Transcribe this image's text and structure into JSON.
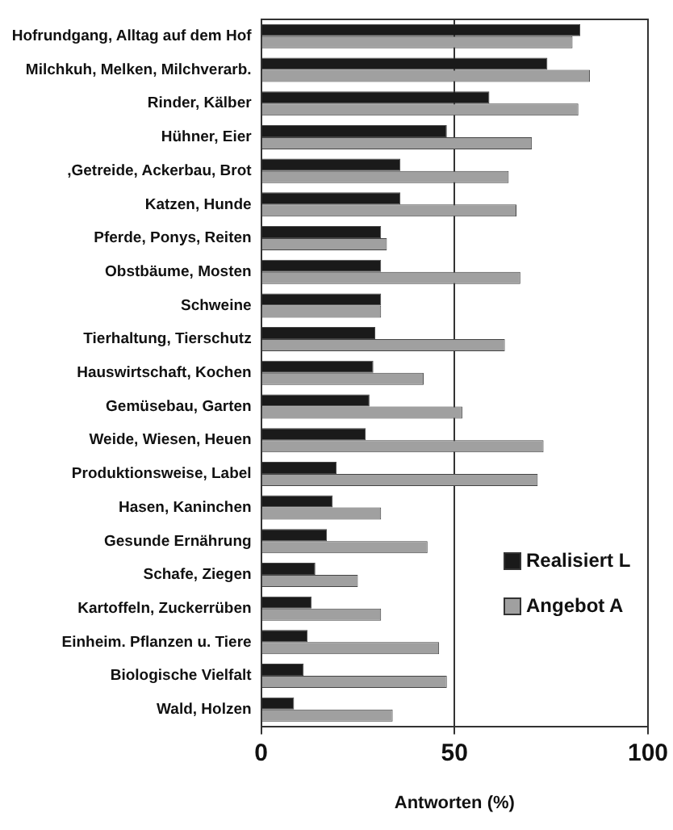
{
  "chart_data": {
    "type": "bar",
    "orientation": "horizontal",
    "xlabel": "Antworten (%)",
    "categories": [
      "Hofrundgang, Alltag auf dem Hof",
      "Milchkuh, Melken, Milchverarb.",
      "Rinder, Kälber",
      "Hühner, Eier",
      ",Getreide, Ackerbau, Brot",
      "Katzen, Hunde",
      "Pferde, Ponys, Reiten",
      "Obstbäume, Mosten",
      "Schweine",
      "Tierhaltung, Tierschutz",
      "Hauswirtschaft, Kochen",
      "Gemüsebau, Garten",
      "Weide, Wiesen, Heuen",
      "Produktionsweise, Label",
      "Hasen, Kaninchen",
      "Gesunde Ernährung",
      "Schafe, Ziegen",
      "Kartoffeln, Zuckerrüben",
      "Einheim. Pflanzen u. Tiere",
      "Biologische Vielfalt",
      "Wald, Holzen"
    ],
    "series": [
      {
        "name": "Realisiert L",
        "color": "#1a1a1a",
        "values": [
          82.5,
          74,
          59,
          48,
          36,
          36,
          31,
          31,
          31,
          29.5,
          29,
          28,
          27,
          19.5,
          18.5,
          17,
          14,
          13,
          12,
          11,
          8.5
        ]
      },
      {
        "name": "Angebot A",
        "color": "#a0a0a0",
        "values": [
          80.5,
          85,
          82,
          70,
          64,
          66,
          32.5,
          67,
          31,
          63,
          42,
          52,
          73,
          71.5,
          31,
          43,
          25,
          31,
          46,
          48,
          34
        ]
      }
    ],
    "xlim": [
      0,
      100
    ],
    "xticks": [
      0,
      50,
      100
    ],
    "grid": "x",
    "legend": "right"
  }
}
